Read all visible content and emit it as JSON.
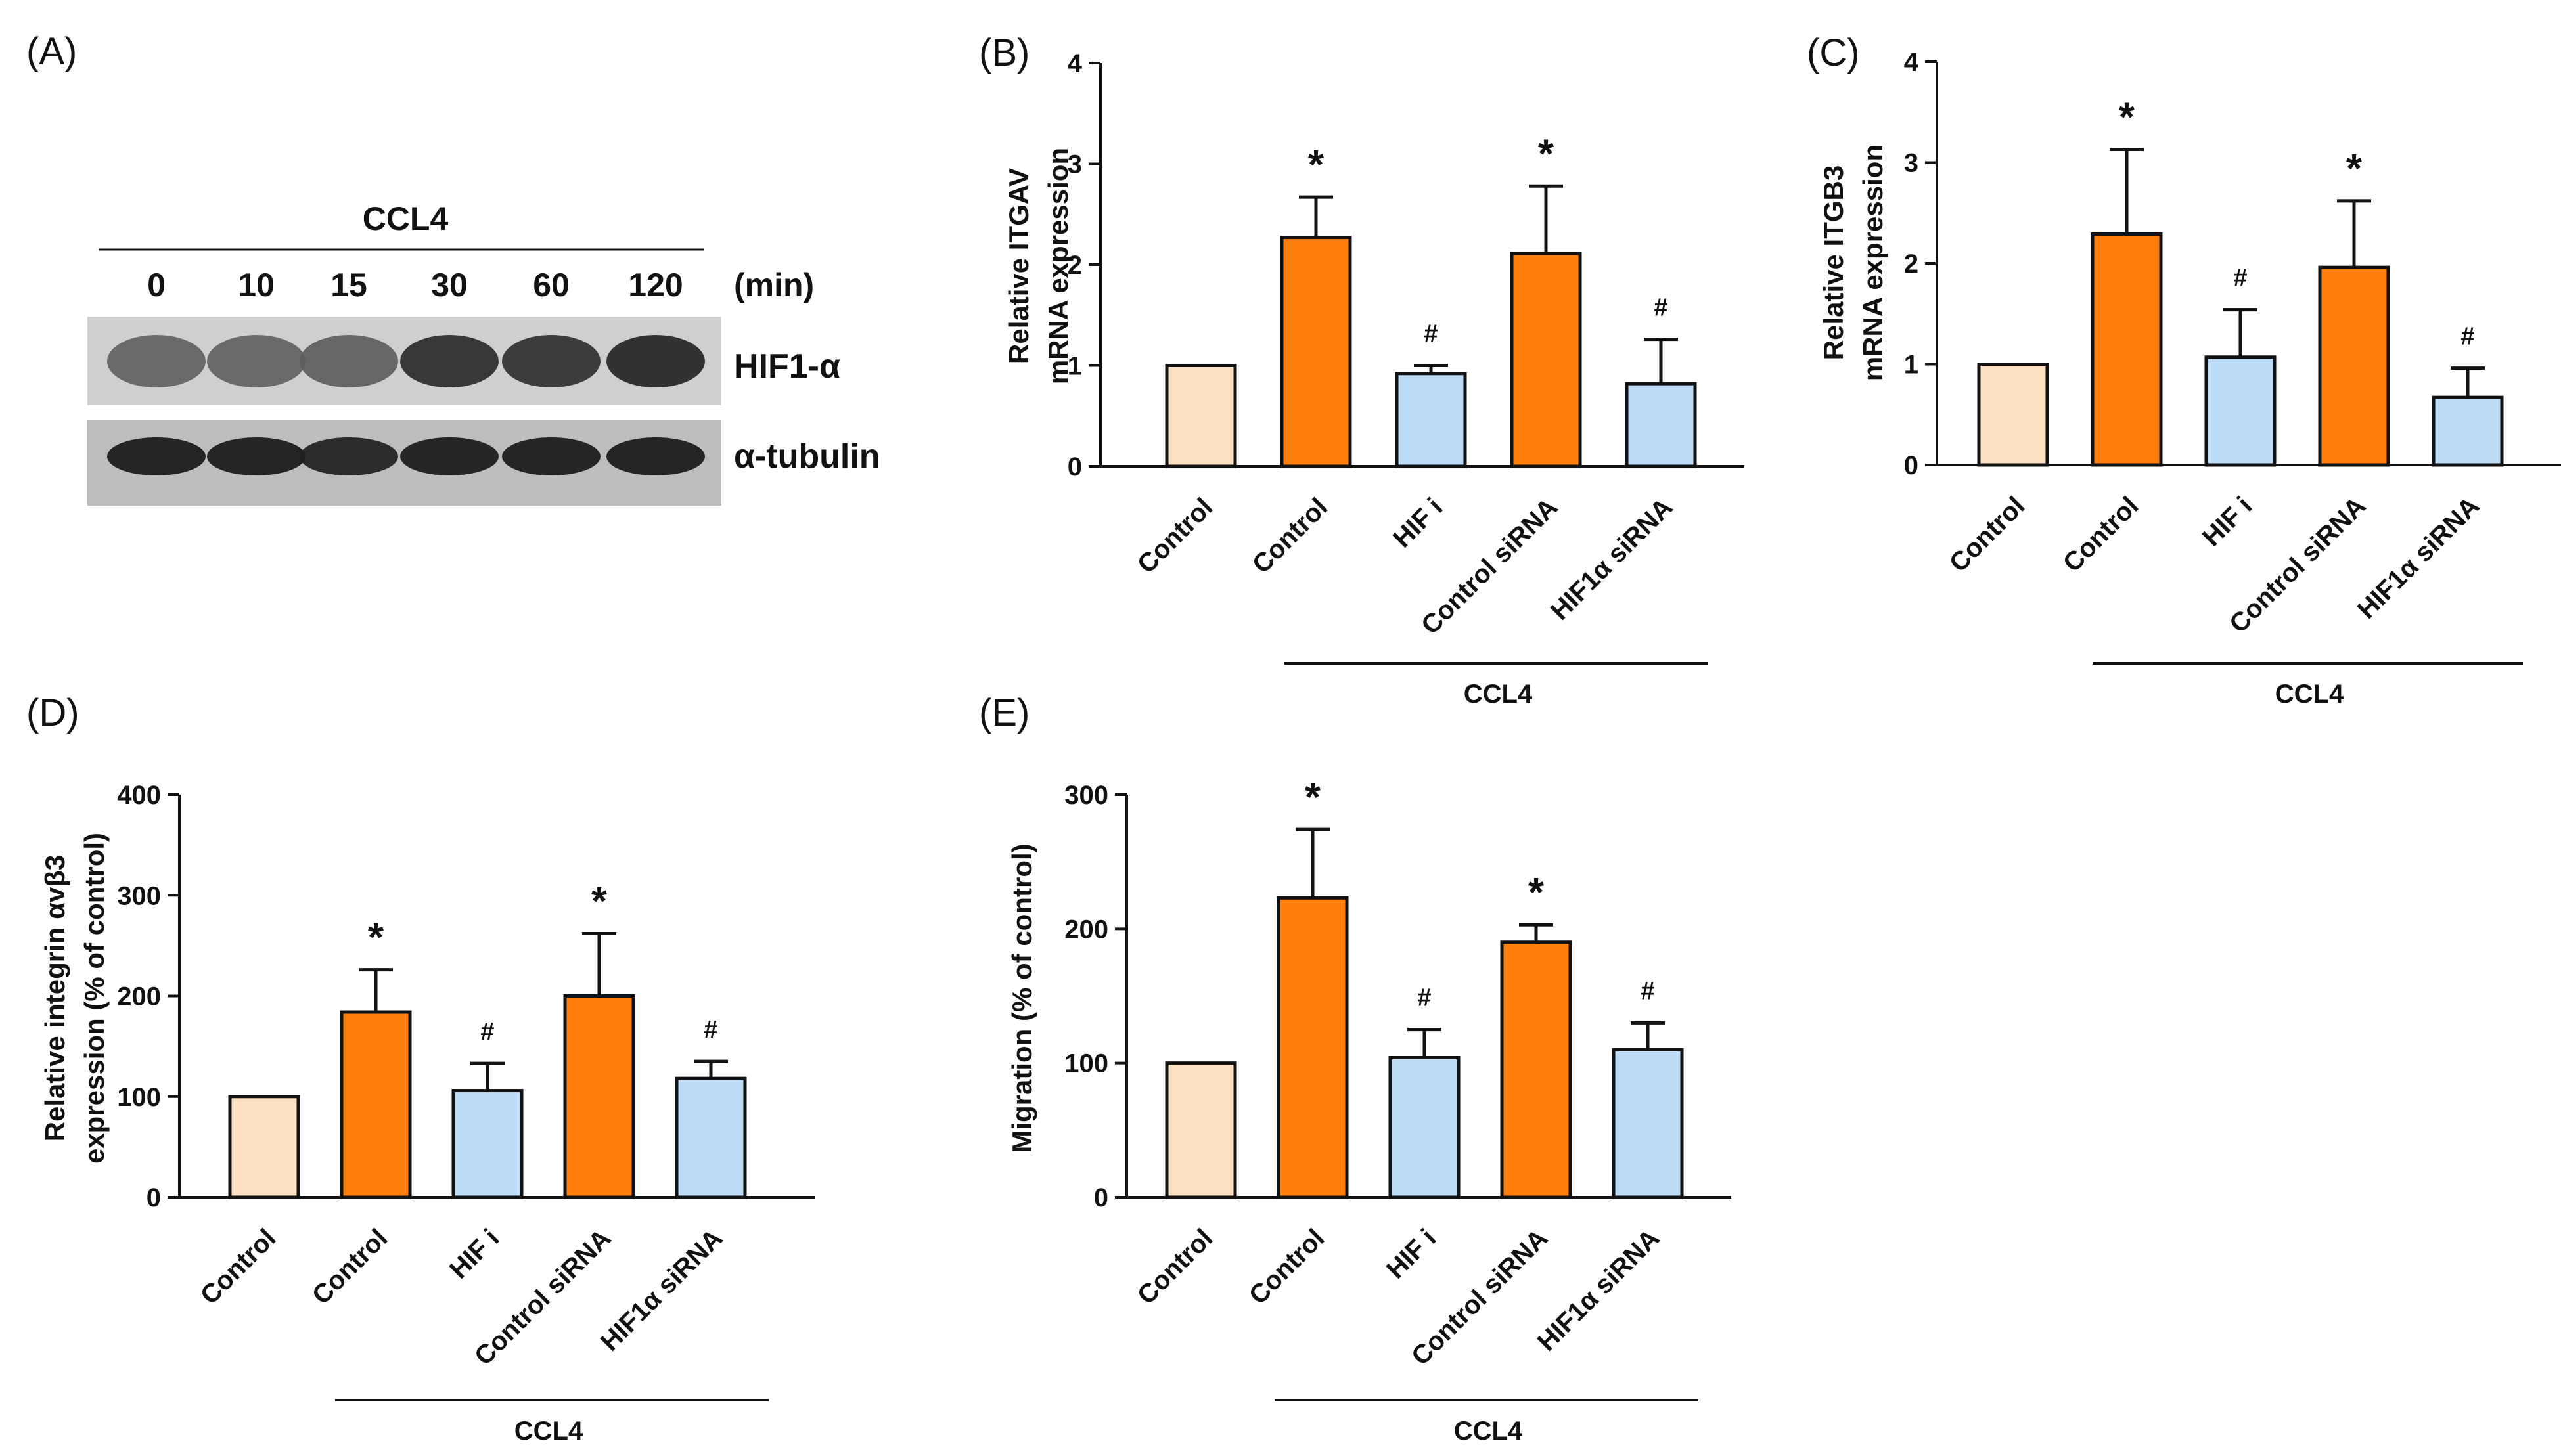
{
  "panel_a": {
    "letter": "(A)",
    "treatment": "CCL4",
    "lanes": [
      "0",
      "10",
      "15",
      "30",
      "60",
      "120"
    ],
    "unit": "(min)",
    "rows": [
      {
        "label": "HIF1-α",
        "intensity": [
          0.55,
          0.55,
          0.58,
          0.85,
          0.82,
          0.88
        ]
      },
      {
        "label": "α-tubulin",
        "intensity": [
          0.95,
          0.95,
          0.92,
          0.95,
          0.95,
          0.95
        ]
      }
    ]
  },
  "colors": {
    "control": "#fde1c3",
    "ccl4": "#ff7f0e",
    "inhibit": "#bcdcf7",
    "edge": "#111111"
  },
  "chart_data": [
    {
      "id": "B",
      "letter": "(B)",
      "type": "bar",
      "ylabel": [
        "Relative ITGAV",
        "mRNA expression"
      ],
      "ylim": [
        0,
        4
      ],
      "yticks": [
        0,
        1,
        2,
        3,
        4
      ],
      "categories": [
        "Control",
        "Control",
        "HIF i",
        "Control siRNA",
        "HIF1α siRNA"
      ],
      "values": [
        1.0,
        2.27,
        0.92,
        2.11,
        0.82
      ],
      "errors": [
        0,
        0.4,
        0.08,
        0.67,
        0.44
      ],
      "marks": [
        "",
        "*",
        "#",
        "*",
        "#"
      ],
      "group_label": "CCL4"
    },
    {
      "id": "C",
      "letter": "(C)",
      "type": "bar",
      "ylabel": [
        "Relative ITGB3",
        "mRNA expression"
      ],
      "ylim": [
        0,
        4
      ],
      "yticks": [
        0,
        1,
        2,
        3,
        4
      ],
      "categories": [
        "Control",
        "Control",
        "HIF i",
        "Control siRNA",
        "HIF1α siRNA"
      ],
      "values": [
        1.0,
        2.29,
        1.07,
        1.96,
        0.67
      ],
      "errors": [
        0,
        0.84,
        0.47,
        0.66,
        0.29
      ],
      "marks": [
        "",
        "*",
        "#",
        "*",
        "#"
      ],
      "group_label": "CCL4"
    },
    {
      "id": "D",
      "letter": "(D)",
      "type": "bar",
      "ylabel": [
        "Relative integrin αvβ3",
        "expression (% of control)"
      ],
      "ylim": [
        0,
        400
      ],
      "yticks": [
        0,
        100,
        200,
        300,
        400
      ],
      "categories": [
        "Control",
        "Control",
        "HIF i",
        "Control siRNA",
        "HIF1α siRNA"
      ],
      "values": [
        100,
        184,
        106,
        200,
        118
      ],
      "errors": [
        0,
        42,
        27,
        62,
        17
      ],
      "marks": [
        "",
        "*",
        "#",
        "*",
        "#"
      ],
      "group_label": "CCL4"
    },
    {
      "id": "E",
      "letter": "(E)",
      "type": "bar",
      "ylabel": [
        "Migration (% of control)"
      ],
      "ylim": [
        0,
        300
      ],
      "yticks": [
        0,
        100,
        200,
        300
      ],
      "categories": [
        "Control",
        "Control",
        "HIF i",
        "Control siRNA",
        "HIF1α siRNA"
      ],
      "values": [
        100,
        223,
        104,
        190,
        110
      ],
      "errors": [
        0,
        51,
        21,
        13,
        20
      ],
      "marks": [
        "",
        "*",
        "#",
        "*",
        "#"
      ],
      "group_label": "CCL4"
    }
  ]
}
